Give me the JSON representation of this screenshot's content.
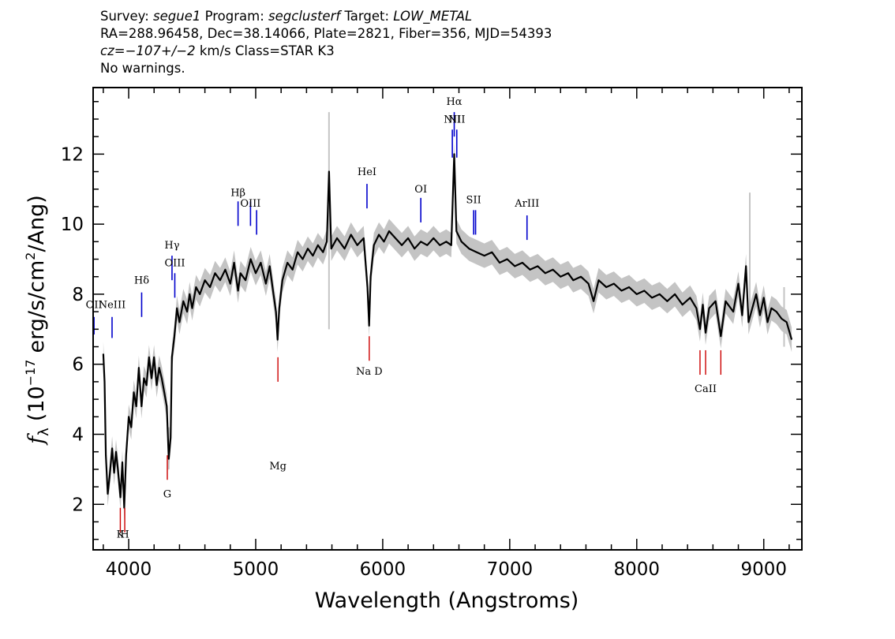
{
  "header": {
    "survey_label": "Survey:",
    "survey": "segue1",
    "program_label": "Program:",
    "program": "segclusterf",
    "target_label": "Target:",
    "target": "LOW_METAL",
    "line2": "RA=288.96458, Dec=38.14066, Plate=2821, Fiber=356, MJD=54393",
    "cz_label": "cz=",
    "cz_value": "−107+/−2",
    "cz_unit_class": "km/s Class=STAR K3",
    "warnings": "No warnings."
  },
  "chart_data": {
    "type": "line",
    "xlabel": "Wavelength (Angstroms)",
    "ylabel_symbol": "f",
    "ylabel_subscript": "λ",
    "ylabel_prefix": "(10",
    "ylabel_exp": "−17",
    "ylabel_mid": "erg/s/cm",
    "ylabel_exp2": "2",
    "ylabel_suffix": "/Ang)",
    "xlim": [
      3720,
      9300
    ],
    "ylim": [
      0.7,
      13.9
    ],
    "xticks": [
      4000,
      5000,
      6000,
      7000,
      8000,
      9000
    ],
    "yticks": [
      2,
      4,
      6,
      8,
      10,
      12
    ],
    "colors": {
      "spectrum": "#000000",
      "error_band": "#c4c4c4",
      "emission_lines": "#0000cc",
      "absorption_lines": "#cc0000"
    },
    "spectrum": [
      [
        3800,
        6.3
      ],
      [
        3810,
        5.5
      ],
      [
        3820,
        3.4
      ],
      [
        3835,
        2.3
      ],
      [
        3850,
        2.8
      ],
      [
        3870,
        3.6
      ],
      [
        3885,
        2.9
      ],
      [
        3900,
        3.5
      ],
      [
        3915,
        3.0
      ],
      [
        3935,
        2.2
      ],
      [
        3950,
        3.2
      ],
      [
        3965,
        1.9
      ],
      [
        3980,
        3.4
      ],
      [
        4000,
        4.5
      ],
      [
        4020,
        4.2
      ],
      [
        4040,
        5.2
      ],
      [
        4060,
        4.8
      ],
      [
        4080,
        5.9
      ],
      [
        4101,
        4.8
      ],
      [
        4120,
        5.6
      ],
      [
        4140,
        5.4
      ],
      [
        4160,
        6.2
      ],
      [
        4180,
        5.6
      ],
      [
        4200,
        6.2
      ],
      [
        4220,
        5.4
      ],
      [
        4240,
        5.9
      ],
      [
        4260,
        5.6
      ],
      [
        4280,
        5.2
      ],
      [
        4300,
        4.8
      ],
      [
        4315,
        3.3
      ],
      [
        4330,
        3.9
      ],
      [
        4340,
        6.2
      ],
      [
        4360,
        6.8
      ],
      [
        4380,
        7.6
      ],
      [
        4400,
        7.2
      ],
      [
        4430,
        7.8
      ],
      [
        4460,
        7.5
      ],
      [
        4480,
        8.0
      ],
      [
        4500,
        7.6
      ],
      [
        4530,
        8.2
      ],
      [
        4560,
        8.0
      ],
      [
        4600,
        8.4
      ],
      [
        4640,
        8.2
      ],
      [
        4680,
        8.6
      ],
      [
        4720,
        8.4
      ],
      [
        4760,
        8.7
      ],
      [
        4800,
        8.3
      ],
      [
        4830,
        8.9
      ],
      [
        4861,
        8.1
      ],
      [
        4880,
        8.6
      ],
      [
        4920,
        8.4
      ],
      [
        4960,
        9.0
      ],
      [
        5000,
        8.6
      ],
      [
        5040,
        8.9
      ],
      [
        5080,
        8.3
      ],
      [
        5110,
        8.8
      ],
      [
        5140,
        8.0
      ],
      [
        5160,
        7.5
      ],
      [
        5172,
        6.7
      ],
      [
        5185,
        7.6
      ],
      [
        5210,
        8.4
      ],
      [
        5250,
        8.9
      ],
      [
        5290,
        8.7
      ],
      [
        5330,
        9.2
      ],
      [
        5370,
        9.0
      ],
      [
        5410,
        9.3
      ],
      [
        5450,
        9.1
      ],
      [
        5490,
        9.4
      ],
      [
        5530,
        9.2
      ],
      [
        5560,
        9.5
      ],
      [
        5577,
        11.5
      ],
      [
        5595,
        9.3
      ],
      [
        5640,
        9.6
      ],
      [
        5700,
        9.3
      ],
      [
        5750,
        9.7
      ],
      [
        5800,
        9.4
      ],
      [
        5850,
        9.6
      ],
      [
        5880,
        8.2
      ],
      [
        5893,
        7.1
      ],
      [
        5905,
        8.5
      ],
      [
        5930,
        9.4
      ],
      [
        5970,
        9.7
      ],
      [
        6010,
        9.5
      ],
      [
        6050,
        9.8
      ],
      [
        6100,
        9.6
      ],
      [
        6150,
        9.4
      ],
      [
        6200,
        9.6
      ],
      [
        6250,
        9.3
      ],
      [
        6300,
        9.5
      ],
      [
        6350,
        9.4
      ],
      [
        6400,
        9.6
      ],
      [
        6450,
        9.4
      ],
      [
        6500,
        9.5
      ],
      [
        6540,
        9.4
      ],
      [
        6563,
        12.0
      ],
      [
        6580,
        9.8
      ],
      [
        6620,
        9.5
      ],
      [
        6680,
        9.3
      ],
      [
        6740,
        9.2
      ],
      [
        6800,
        9.1
      ],
      [
        6860,
        9.2
      ],
      [
        6920,
        8.9
      ],
      [
        6980,
        9.0
      ],
      [
        7040,
        8.8
      ],
      [
        7100,
        8.9
      ],
      [
        7160,
        8.7
      ],
      [
        7220,
        8.8
      ],
      [
        7280,
        8.6
      ],
      [
        7340,
        8.7
      ],
      [
        7400,
        8.5
      ],
      [
        7460,
        8.6
      ],
      [
        7500,
        8.4
      ],
      [
        7560,
        8.5
      ],
      [
        7620,
        8.3
      ],
      [
        7660,
        7.8
      ],
      [
        7700,
        8.4
      ],
      [
        7760,
        8.2
      ],
      [
        7820,
        8.3
      ],
      [
        7880,
        8.1
      ],
      [
        7940,
        8.2
      ],
      [
        8000,
        8.0
      ],
      [
        8060,
        8.1
      ],
      [
        8120,
        7.9
      ],
      [
        8180,
        8.0
      ],
      [
        8240,
        7.8
      ],
      [
        8300,
        8.0
      ],
      [
        8360,
        7.7
      ],
      [
        8420,
        7.9
      ],
      [
        8470,
        7.6
      ],
      [
        8498,
        7.0
      ],
      [
        8520,
        7.7
      ],
      [
        8542,
        6.9
      ],
      [
        8570,
        7.6
      ],
      [
        8620,
        7.8
      ],
      [
        8662,
        6.8
      ],
      [
        8700,
        7.8
      ],
      [
        8760,
        7.5
      ],
      [
        8800,
        8.3
      ],
      [
        8830,
        7.4
      ],
      [
        8860,
        8.8
      ],
      [
        8880,
        7.2
      ],
      [
        8910,
        7.6
      ],
      [
        8940,
        8.0
      ],
      [
        8970,
        7.4
      ],
      [
        9000,
        7.9
      ],
      [
        9030,
        7.2
      ],
      [
        9060,
        7.6
      ],
      [
        9100,
        7.5
      ],
      [
        9140,
        7.3
      ],
      [
        9180,
        7.2
      ],
      [
        9220,
        6.7
      ]
    ],
    "error_band_width": 0.35,
    "spikes": [
      {
        "x": 5577,
        "y_low": 7.0,
        "y_high": 13.2
      },
      {
        "x": 4315,
        "y_low": 3.0,
        "y_high": 4.2
      },
      {
        "x": 8890,
        "y_low": 7.2,
        "y_high": 10.9
      },
      {
        "x": 9160,
        "y_low": 6.5,
        "y_high": 8.2
      }
    ],
    "emission_lines": [
      {
        "label": "OII",
        "x": 3727,
        "y_label": 7.6,
        "y0": 7.35,
        "y1": 6.85
      },
      {
        "label": "NeIII",
        "x": 3869,
        "y_label": 7.6,
        "y0": 7.35,
        "y1": 6.75
      },
      {
        "label": "Hδ",
        "x": 4102,
        "y_label": 8.3,
        "y0": 8.05,
        "y1": 7.35
      },
      {
        "label": "Hγ",
        "x": 4341,
        "y_label": 9.3,
        "y0": 9.1,
        "y1": 8.4
      },
      {
        "label": "OIII",
        "x": 4363,
        "y_label": 8.8,
        "y0": 8.6,
        "y1": 7.9
      },
      {
        "label": "Hβ",
        "x": 4861,
        "y_label": 10.8,
        "y0": 10.65,
        "y1": 9.95
      },
      {
        "label": "OIII",
        "x": 4959,
        "y_label": 10.5,
        "y0": 10.65,
        "y1": 9.95
      },
      {
        "label": "",
        "x": 5007,
        "y_label": 0,
        "y0": 10.4,
        "y1": 9.7
      },
      {
        "label": "HeI",
        "x": 5876,
        "y_label": 11.4,
        "y0": 11.15,
        "y1": 10.45
      },
      {
        "label": "OI",
        "x": 6300,
        "y_label": 10.9,
        "y0": 10.75,
        "y1": 10.05
      },
      {
        "label": "NII",
        "x": 6548,
        "y_label": 12.9,
        "y0": 12.7,
        "y1": 11.9
      },
      {
        "label": "Hα",
        "x": 6563,
        "y_label": 13.4,
        "y0": 13.2,
        "y1": 12.5
      },
      {
        "label": "NII",
        "x": 6583,
        "y_label": 12.9,
        "y0": 12.7,
        "y1": 11.9
      },
      {
        "label": "SII",
        "x": 6716,
        "y_label": 10.6,
        "y0": 10.4,
        "y1": 9.7
      },
      {
        "label": "",
        "x": 6731,
        "y_label": 0,
        "y0": 10.4,
        "y1": 9.7
      },
      {
        "label": "ArIII",
        "x": 7136,
        "y_label": 10.5,
        "y0": 10.25,
        "y1": 9.55
      }
    ],
    "absorption_lines": [
      {
        "label": "K",
        "x": 3934,
        "y_label": 1.05
      },
      {
        "label": "H",
        "x": 3969,
        "y_label": 1.05
      },
      {
        "label": "G",
        "x": 4304,
        "y_label": 2.2
      },
      {
        "label": "Mg",
        "x": 5175,
        "y_label": 3.0
      },
      {
        "label": "Na D",
        "x": 5894,
        "y_label": 5.7
      },
      {
        "label": "CaII",
        "x": 8542,
        "y_label": 5.2
      }
    ],
    "absorption_ticks": [
      {
        "x": 3934,
        "y0": 1.9,
        "y1": 1.2
      },
      {
        "x": 3969,
        "y0": 1.9,
        "y1": 1.2
      },
      {
        "x": 4304,
        "y0": 3.4,
        "y1": 2.7
      },
      {
        "x": 5175,
        "y0": 6.2,
        "y1": 5.5
      },
      {
        "x": 5894,
        "y0": 6.8,
        "y1": 6.1
      },
      {
        "x": 8498,
        "y0": 6.4,
        "y1": 5.7
      },
      {
        "x": 8542,
        "y0": 6.4,
        "y1": 5.7
      },
      {
        "x": 8662,
        "y0": 6.4,
        "y1": 5.7
      }
    ]
  }
}
